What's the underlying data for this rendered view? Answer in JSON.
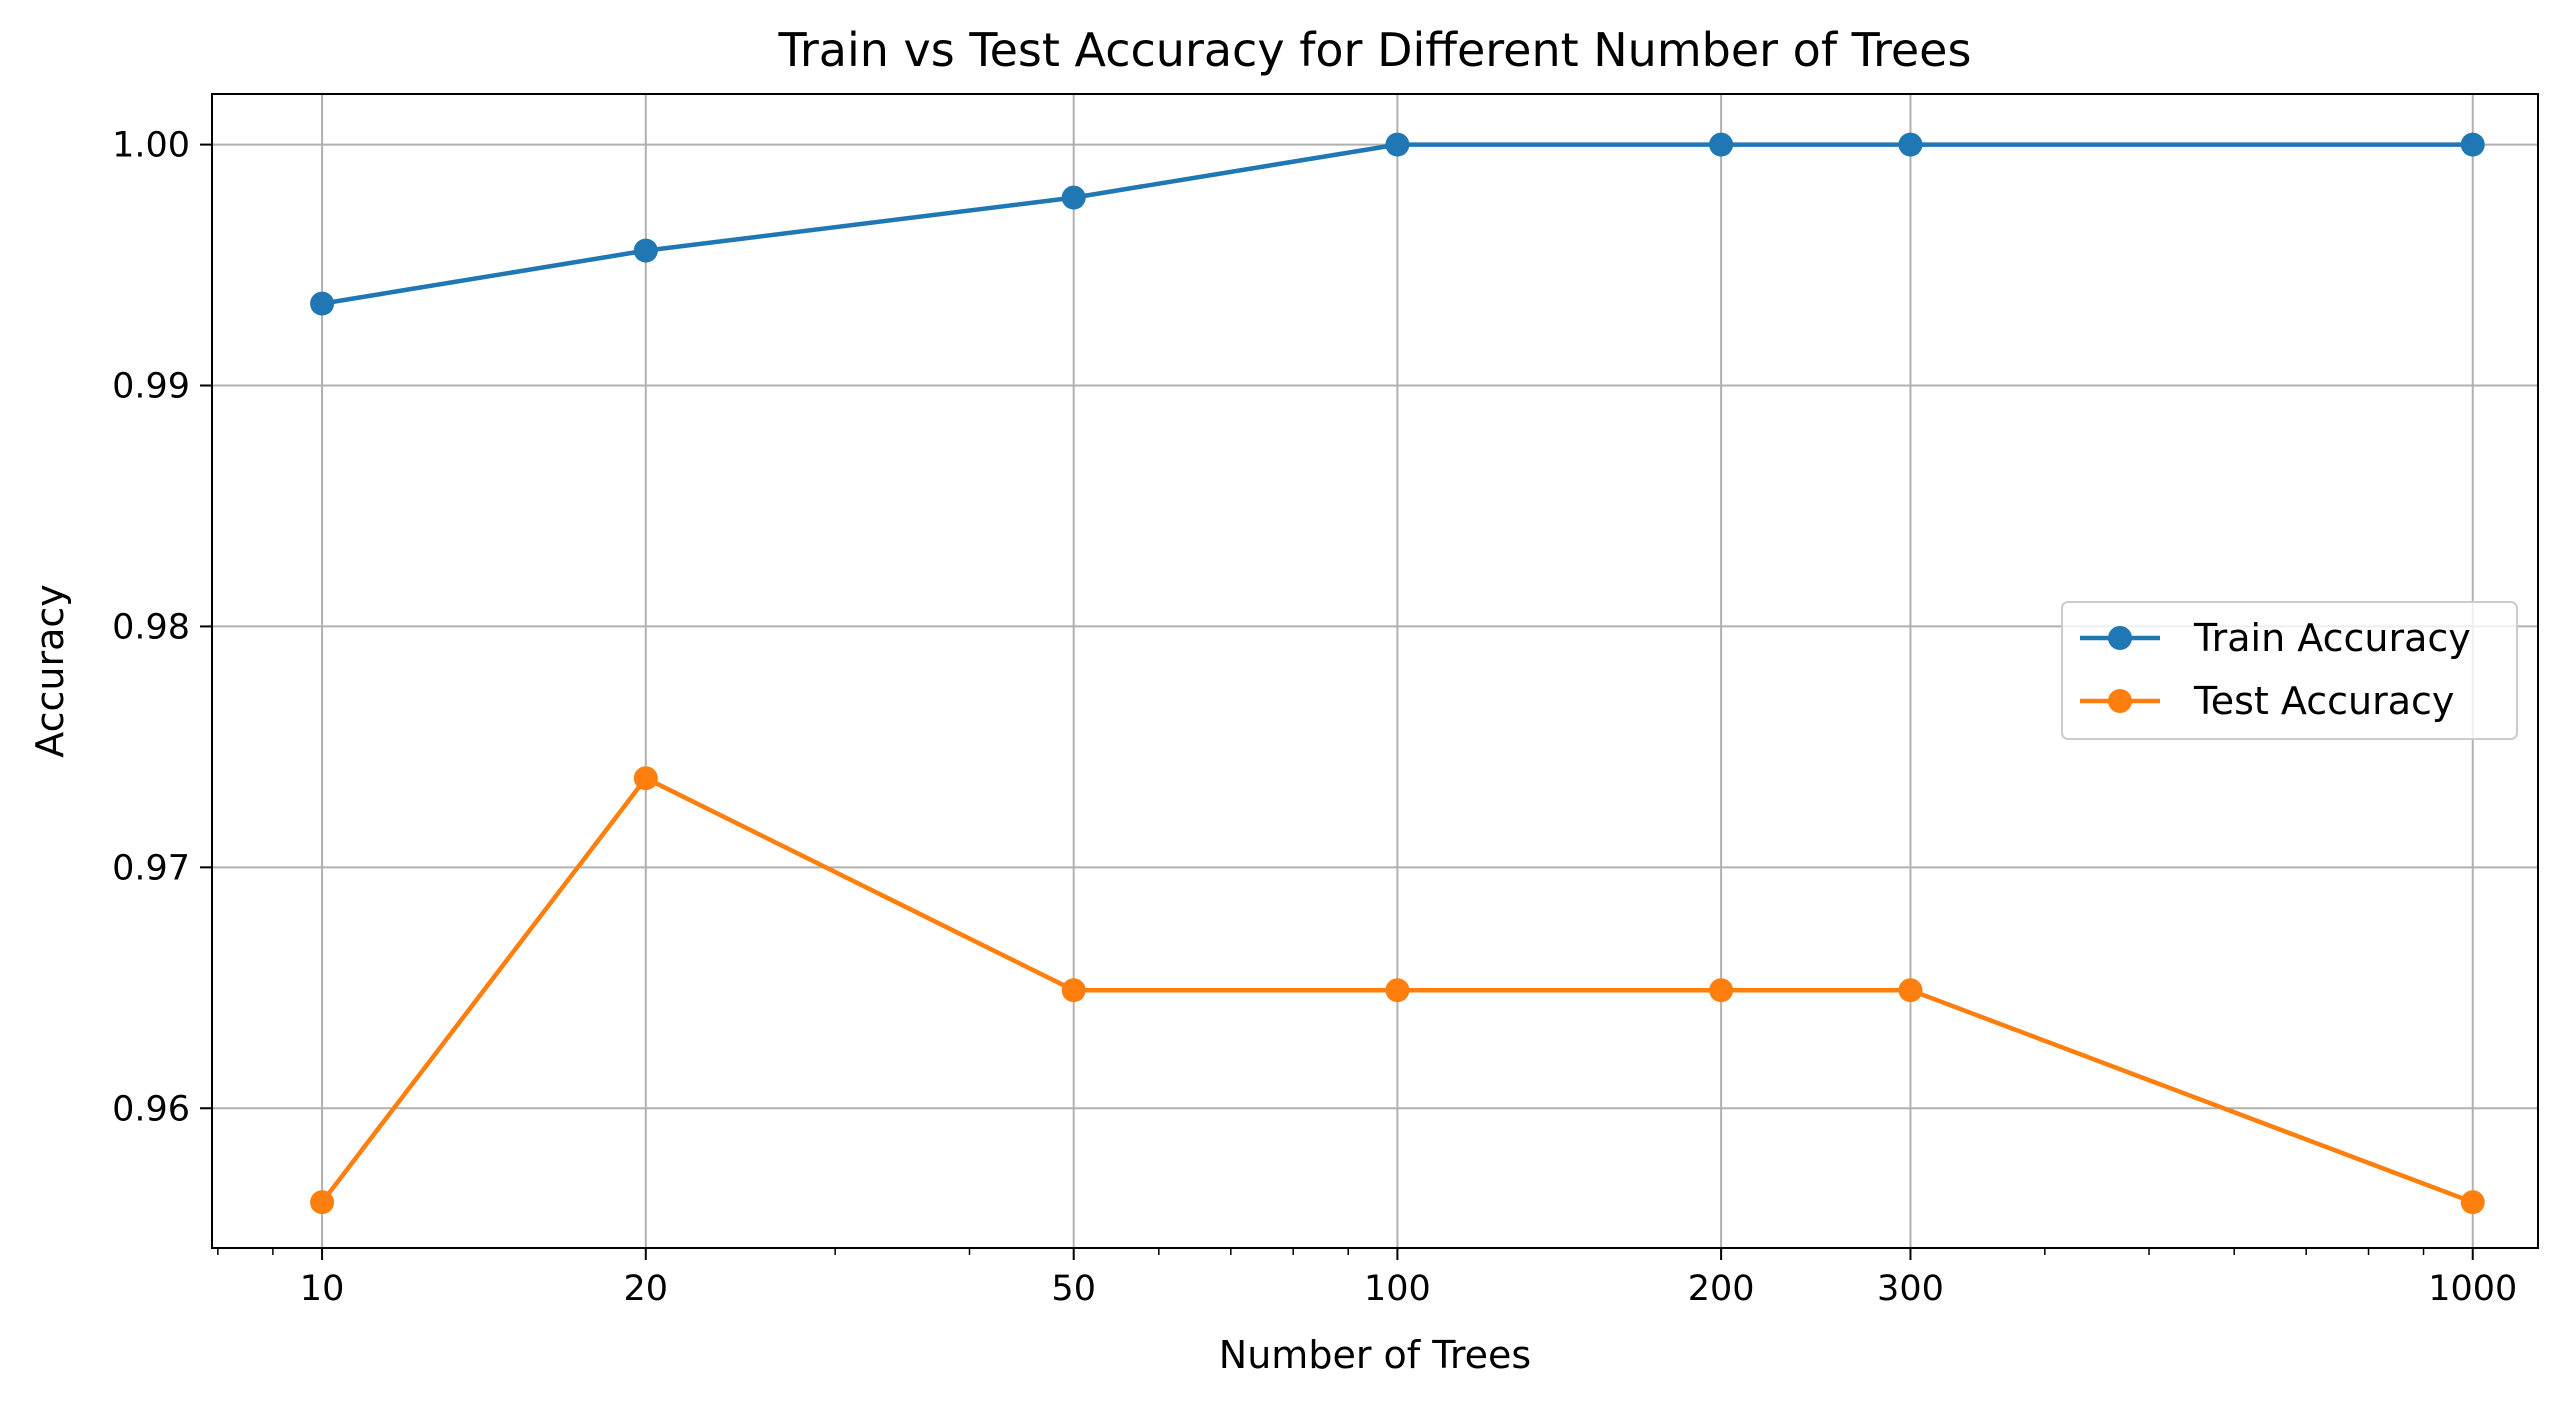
{
  "chart_data": {
    "type": "line",
    "title": "Train vs Test Accuracy for Different Number of Trees",
    "xlabel": "Number of Trees",
    "ylabel": "Accuracy",
    "x": [
      10,
      20,
      50,
      100,
      200,
      300,
      1000
    ],
    "xscale": "log",
    "xlim": [
      7.9,
      1150
    ],
    "ylim": [
      0.9542,
      1.0021
    ],
    "x_ticks": [
      "10",
      "20",
      "50",
      "100",
      "200",
      "300",
      "1000"
    ],
    "y_ticks": [
      "0.96",
      "0.97",
      "0.98",
      "0.99",
      "1.00"
    ],
    "grid": true,
    "legend_position": "center-right",
    "series": [
      {
        "name": "Train Accuracy",
        "color": "#1f77b4",
        "values": [
          0.9934,
          0.9956,
          0.9978,
          1.0,
          1.0,
          1.0,
          1.0
        ]
      },
      {
        "name": "Test Accuracy",
        "color": "#ff7f0e",
        "values": [
          0.9561,
          0.9737,
          0.9649,
          0.9649,
          0.9649,
          0.9649,
          0.9561
        ]
      }
    ]
  }
}
